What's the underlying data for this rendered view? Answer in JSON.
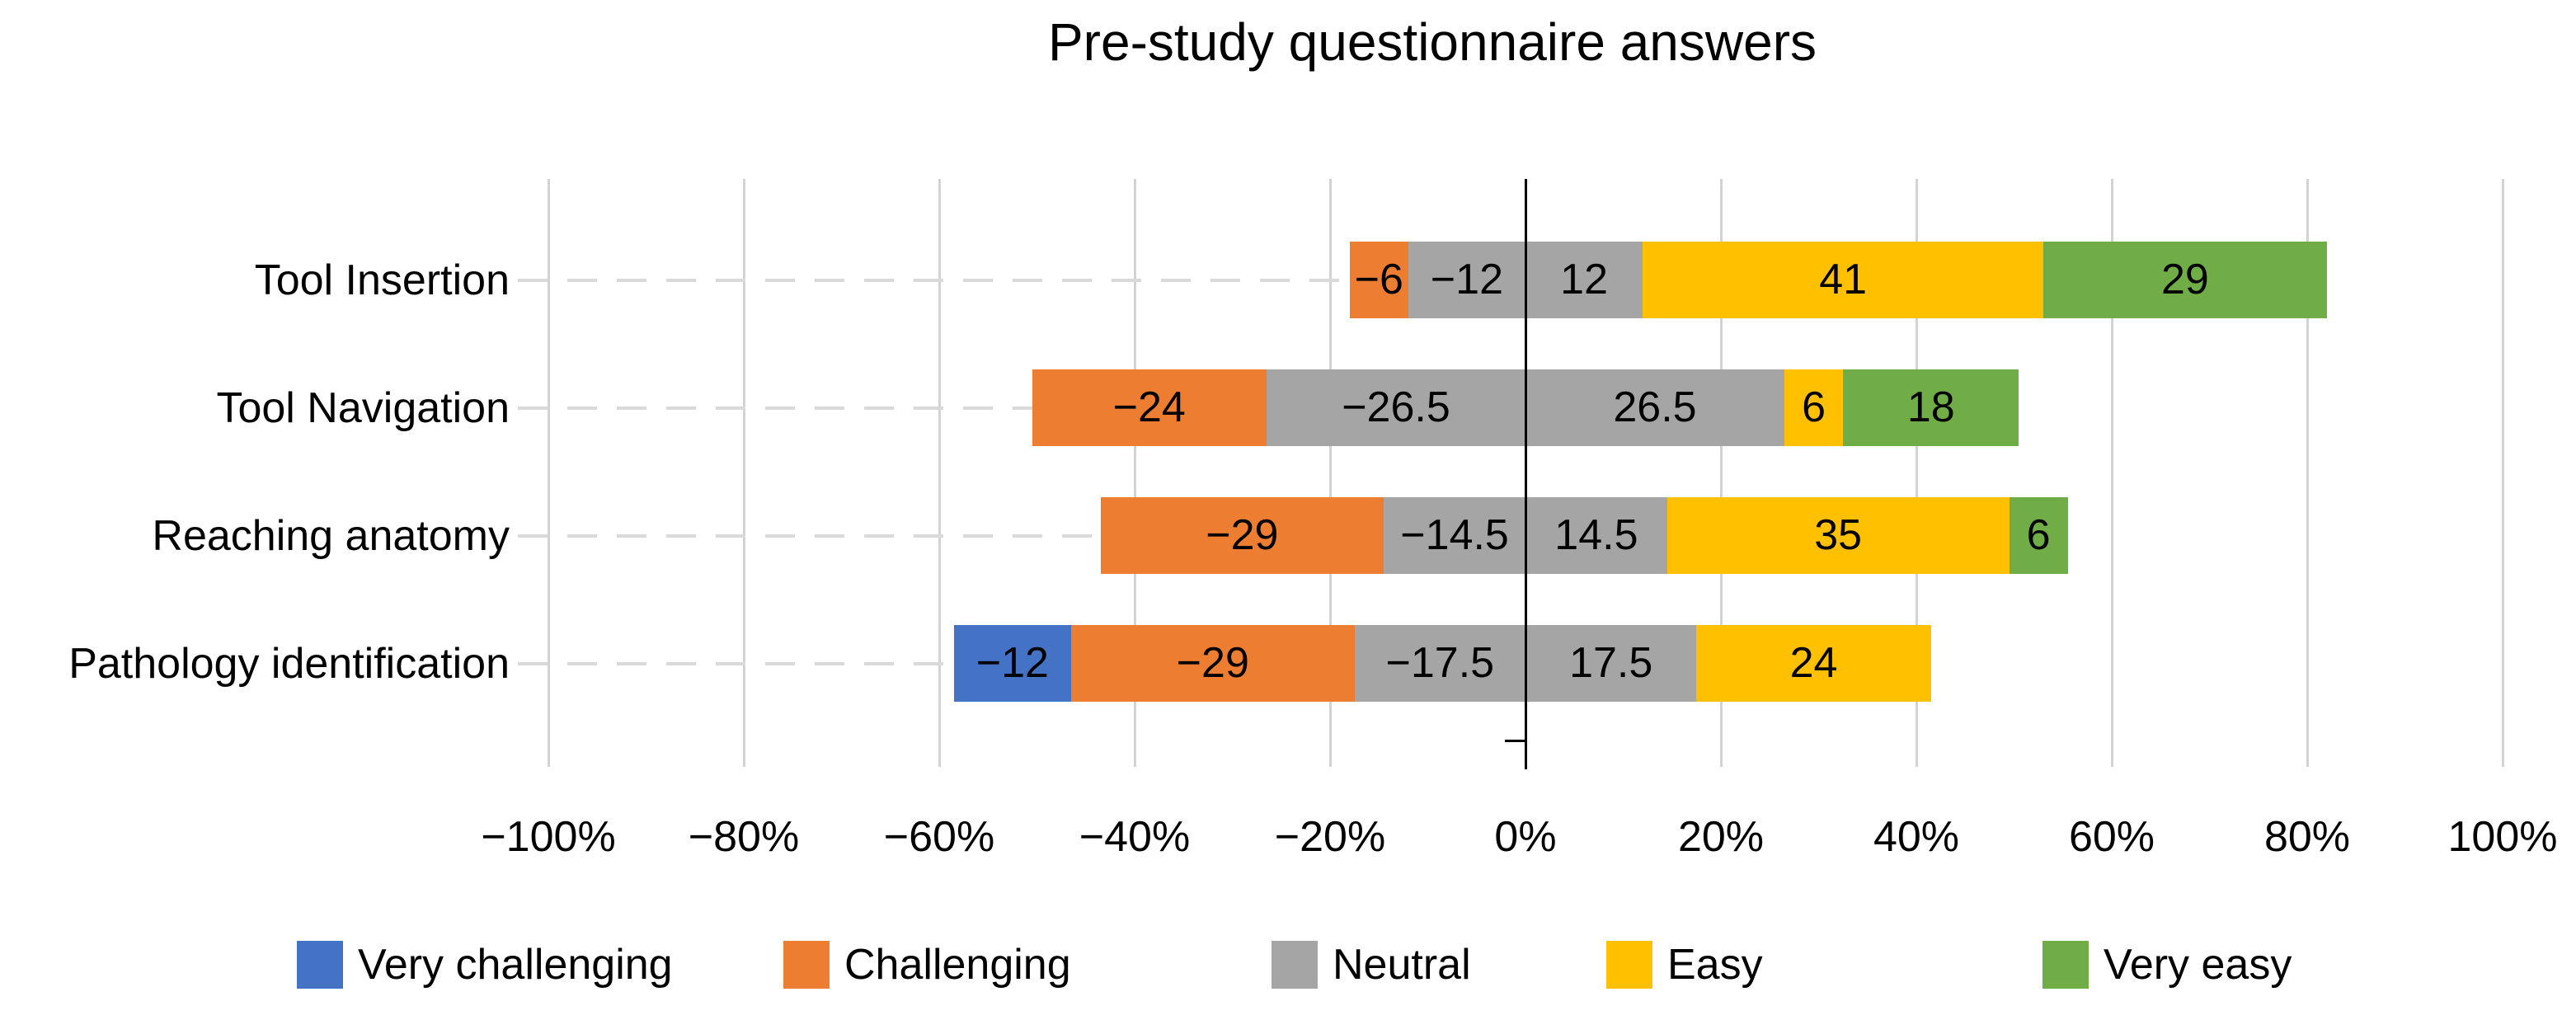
{
  "chart_data": {
    "type": "bar",
    "subtype": "diverging-stacked-horizontal-likert",
    "title": "Pre-study questionnaire answers",
    "categories": [
      "Tool Insertion",
      "Tool Navigation",
      "Reaching anatomy",
      "Pathology identification"
    ],
    "series": [
      {
        "name": "Very challenging",
        "color": "#4472C4",
        "values": [
          0,
          0,
          0,
          -12
        ]
      },
      {
        "name": "Challenging",
        "color": "#ED7D31",
        "values": [
          -6,
          -24,
          -29,
          -29
        ]
      },
      {
        "name": "Neutral (left of zero)",
        "color": "#A5A5A5",
        "values": [
          -12,
          -26.5,
          -14.5,
          -17.5
        ]
      },
      {
        "name": "Neutral (right of zero)",
        "color": "#A5A5A5",
        "values": [
          12,
          26.5,
          14.5,
          17.5
        ]
      },
      {
        "name": "Easy",
        "color": "#FFC000",
        "values": [
          41,
          6,
          35,
          24
        ]
      },
      {
        "name": "Very easy",
        "color": "#70AD47",
        "values": [
          29,
          18,
          6,
          0
        ]
      }
    ],
    "xlim": [
      -100,
      100
    ],
    "x_tick_step": 20,
    "x_tick_labels": [
      "−100%",
      "−80%",
      "−60%",
      "−40%",
      "−20%",
      "0%",
      "20%",
      "40%",
      "60%",
      "80%",
      "100%"
    ],
    "grid": true,
    "legend_position": "bottom",
    "legend": [
      {
        "label": "Very challenging",
        "color": "#4472C4"
      },
      {
        "label": "Challenging",
        "color": "#ED7D31"
      },
      {
        "label": "Neutral",
        "color": "#A5A5A5"
      },
      {
        "label": "Easy",
        "color": "#FFC000"
      },
      {
        "label": "Very easy",
        "color": "#70AD47"
      }
    ],
    "colors": {
      "gridline": "#D3D3D3",
      "leader_dash": "#D9D9D9",
      "zero_axis": "#000000",
      "text": "#000000",
      "background": "#FFFFFF"
    }
  }
}
